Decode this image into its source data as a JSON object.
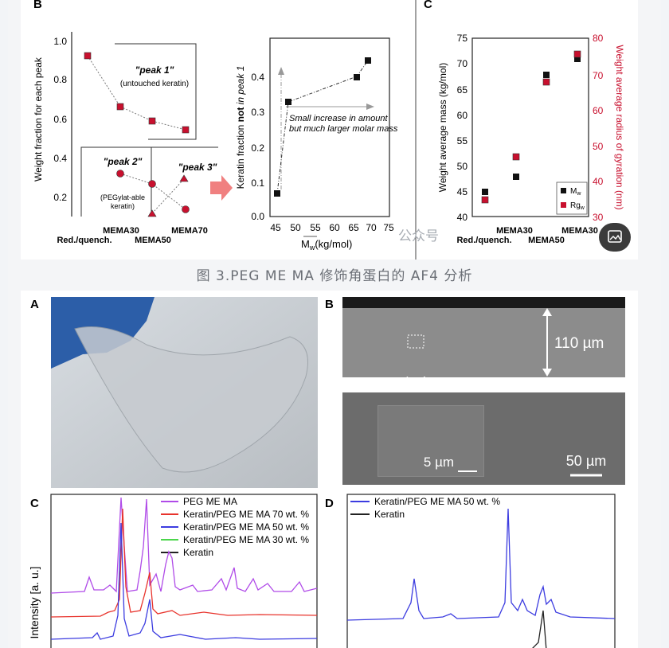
{
  "panel_b": {
    "label": "B",
    "left_ylabel": "Weight fraction for each peak",
    "left_yticks": [
      "1.0",
      "0.8",
      "0.6",
      "0.4",
      "0.2"
    ],
    "peak1_label": "\"peak 1\"",
    "peak1_sub": "(untouched keratin)",
    "peak2_label": "\"peak 2\"",
    "peak2_sub1": "(PEGylat-able",
    "peak2_sub2": "keratin)",
    "peak3_label": "\"peak 3\"",
    "x_top": [
      "MEMA30",
      "MEMA70"
    ],
    "x_bottom": [
      "Red./quench.",
      "MEMA50"
    ],
    "right_ylabel_pre": "Keratin fraction ",
    "right_ylabel_bold": "not",
    "right_ylabel_post": " in peak 1",
    "right_yticks": [
      "0.4",
      "0.3",
      "0.2",
      "0.1",
      "0.0"
    ],
    "right_xticks": [
      "45",
      "50",
      "55",
      "60",
      "65",
      "70",
      "75"
    ],
    "right_xlabel": "M",
    "right_xlabel_sub": "w",
    "right_xlabel_unit": "(kg/mol)",
    "note_line1": "Small increase in amount",
    "note_line2": "but much larger molar mass"
  },
  "panel_c_top": {
    "label": "C",
    "ylabel_left": "Weight average mass (kg/mol)",
    "ylabel_right": "Weight average radius of gyration (nm)",
    "left_yticks": [
      "75",
      "70",
      "65",
      "60",
      "55",
      "50",
      "45",
      "40"
    ],
    "right_yticks": [
      "80",
      "70",
      "60",
      "50",
      "40",
      "30"
    ],
    "x_top": [
      "MEMA30",
      "MEMA30"
    ],
    "x_bottom": [
      "Red./quench.",
      "MEMA50"
    ],
    "legend_mw": "M",
    "legend_mw_sub": "w",
    "legend_rg": "Rg",
    "legend_rg_sub": "w"
  },
  "caption": "图 3.PEG ME MA 修饰角蛋白的 AF4 分析",
  "photo_a": {
    "label": "A"
  },
  "sem_b": {
    "label": "B",
    "scale_110": "110 µm",
    "scale_5": "5 µm",
    "scale_50": "50 µm"
  },
  "panel_c_bottom": {
    "label": "C",
    "ylabel": "Intensity [a. u.]",
    "legend": [
      {
        "name": "PEG ME MA",
        "color": "#b04be8"
      },
      {
        "name": "Keratin/PEG ME MA 70 wt. %",
        "color": "#e8332c"
      },
      {
        "name": "Keratin/PEG ME MA 50 wt. %",
        "color": "#3c3ce0"
      },
      {
        "name": "Keratin/PEG ME MA 30 wt. %",
        "color": "#4cd64c"
      },
      {
        "name": "Keratin",
        "color": "#222222"
      }
    ]
  },
  "panel_d": {
    "label": "D",
    "legend": [
      {
        "name": "Keratin/PEG ME MA 50 wt. %",
        "color": "#3c3ce0"
      },
      {
        "name": "Keratin",
        "color": "#222222"
      }
    ]
  },
  "watermark": "公众号",
  "colors": {
    "marker_black": "#111111",
    "marker_red": "#c8102e",
    "accent_arrow": "#f08080"
  }
}
